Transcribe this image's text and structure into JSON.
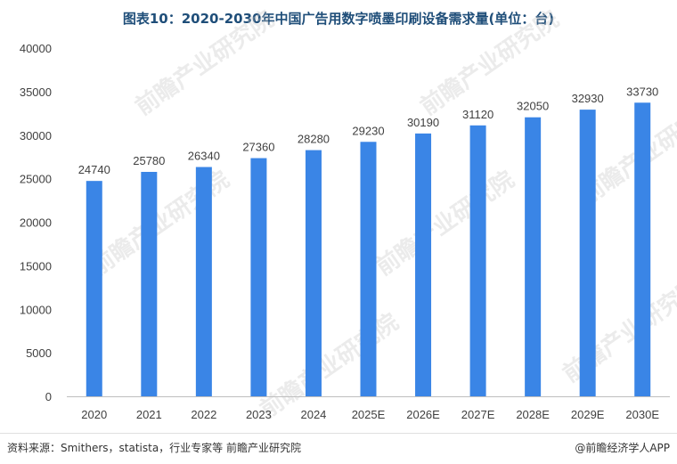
{
  "chart_data": {
    "type": "bar",
    "title": "图表10：2020-2030年中国广告用数字喷墨印刷设备需求量(单位：台)",
    "categories": [
      "2020",
      "2021",
      "2022",
      "2023",
      "2024",
      "2025E",
      "2026E",
      "2027E",
      "2028E",
      "2029E",
      "2030E"
    ],
    "values": [
      24740,
      25780,
      26340,
      27360,
      28280,
      29230,
      30190,
      31120,
      32050,
      32930,
      33730
    ],
    "ylim": [
      0,
      40000
    ],
    "yticks": [
      0,
      5000,
      10000,
      15000,
      20000,
      25000,
      30000,
      35000,
      40000
    ],
    "grid": false,
    "bar_color": "#3a85e6",
    "xlabel": "",
    "ylabel": ""
  },
  "footer": {
    "source": "资料来源：Smithers，statista，行业专家等 前瞻产业研究院",
    "credit": "@前瞻经济学人APP"
  },
  "watermark": {
    "text": "前瞻产业研究院"
  }
}
